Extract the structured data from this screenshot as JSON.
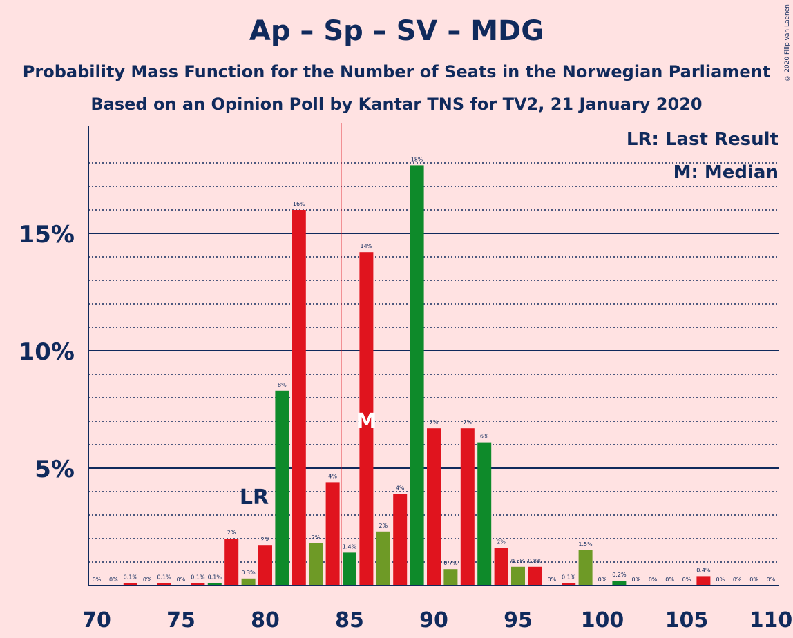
{
  "title": "Ap – Sp – SV – MDG",
  "subtitle1": "Probability Mass Function for the Number of Seats in the Norwegian Parliament",
  "subtitle2": "Based on an Opinion Poll by Kantar TNS for TV2, 21 January 2020",
  "copyright": "© 2020 Filip van Laenen",
  "legend": {
    "lr": "LR: Last Result",
    "m": "M: Median"
  },
  "markers": {
    "lr_label": "LR",
    "lr_seat": 80,
    "median_label": "M",
    "median_seat": 86,
    "majority_line_seat": 84.5
  },
  "colors": {
    "red": "#E0141E",
    "green": "#0E8A2A",
    "olive": "#6E9A26",
    "axis": "#102A5C",
    "majority_line": "#E0141E",
    "background": "#FFE2E2"
  },
  "chart_data": {
    "type": "bar",
    "ylim": [
      0,
      18
    ],
    "y_ticks": [
      {
        "value": 5,
        "label": "5%"
      },
      {
        "value": 10,
        "label": "10%"
      },
      {
        "value": 15,
        "label": "15%"
      }
    ],
    "x_ticks": [
      70,
      75,
      80,
      85,
      90,
      95,
      100,
      105,
      110
    ],
    "bars": [
      {
        "seat": 71,
        "value": 0,
        "label": "0%",
        "color": "red"
      },
      {
        "seat": 72,
        "value": 0,
        "label": "0%",
        "color": "red"
      },
      {
        "seat": 73,
        "value": 0.1,
        "label": "0.1%",
        "color": "red"
      },
      {
        "seat": 74,
        "value": 0,
        "label": "0%",
        "color": "red"
      },
      {
        "seat": 75,
        "value": 0.1,
        "label": "0.1%",
        "color": "red"
      },
      {
        "seat": 76,
        "value": 0,
        "label": "0%",
        "color": "red"
      },
      {
        "seat": 77,
        "value": 0.1,
        "label": "0.1%",
        "color": "red"
      },
      {
        "seat": 78,
        "value": 0.1,
        "label": "0.1%",
        "color": "green"
      },
      {
        "seat": 79,
        "value": 2.0,
        "label": "2%",
        "color": "red"
      },
      {
        "seat": 80,
        "value": 0.3,
        "label": "0.3%",
        "color": "olive"
      },
      {
        "seat": 81,
        "value": 1.7,
        "label": "2%",
        "color": "red"
      },
      {
        "seat": 82,
        "value": 8.3,
        "label": "8%",
        "color": "green"
      },
      {
        "seat": 83,
        "value": 16.0,
        "label": "16%",
        "color": "red"
      },
      {
        "seat": 84,
        "value": 1.8,
        "label": "2%",
        "color": "olive"
      },
      {
        "seat": 85,
        "value": 4.4,
        "label": "4%",
        "color": "red"
      },
      {
        "seat": 86,
        "value": 1.4,
        "label": "1.4%",
        "color": "green"
      },
      {
        "seat": 87,
        "value": 14.2,
        "label": "14%",
        "color": "red"
      },
      {
        "seat": 88,
        "value": 2.3,
        "label": "2%",
        "color": "olive"
      },
      {
        "seat": 89,
        "value": 3.9,
        "label": "4%",
        "color": "red"
      },
      {
        "seat": 90,
        "value": 17.9,
        "label": "18%",
        "color": "green"
      },
      {
        "seat": 91,
        "value": 6.7,
        "label": "7%",
        "color": "red"
      },
      {
        "seat": 92,
        "value": 0.7,
        "label": "0.7%",
        "color": "olive"
      },
      {
        "seat": 93,
        "value": 6.7,
        "label": "7%",
        "color": "red"
      },
      {
        "seat": 94,
        "value": 6.1,
        "label": "6%",
        "color": "green"
      },
      {
        "seat": 95,
        "value": 1.6,
        "label": "2%",
        "color": "red"
      },
      {
        "seat": 96,
        "value": 0.8,
        "label": "0.8%",
        "color": "olive"
      },
      {
        "seat": 97,
        "value": 0.8,
        "label": "0.8%",
        "color": "red"
      },
      {
        "seat": 98,
        "value": 0,
        "label": "0%",
        "color": "green"
      },
      {
        "seat": 99,
        "value": 0.1,
        "label": "0.1%",
        "color": "red"
      },
      {
        "seat": 100,
        "value": 1.5,
        "label": "1.5%",
        "color": "olive"
      },
      {
        "seat": 101,
        "value": 0,
        "label": "0%",
        "color": "red"
      },
      {
        "seat": 102,
        "value": 0.2,
        "label": "0.2%",
        "color": "green"
      },
      {
        "seat": 103,
        "value": 0,
        "label": "0%",
        "color": "red"
      },
      {
        "seat": 104,
        "value": 0,
        "label": "0%",
        "color": "olive"
      },
      {
        "seat": 105,
        "value": 0,
        "label": "0%",
        "color": "red"
      },
      {
        "seat": 106,
        "value": 0,
        "label": "0%",
        "color": "green"
      },
      {
        "seat": 107,
        "value": 0.4,
        "label": "0.4%",
        "color": "red"
      },
      {
        "seat": 108,
        "value": 0,
        "label": "0%",
        "color": "olive"
      },
      {
        "seat": 109,
        "value": 0,
        "label": "0%",
        "color": "red"
      },
      {
        "seat": 110,
        "value": 0,
        "label": "0%",
        "color": "green"
      },
      {
        "seat": 111,
        "value": 0,
        "label": "0%",
        "color": "red"
      }
    ]
  }
}
